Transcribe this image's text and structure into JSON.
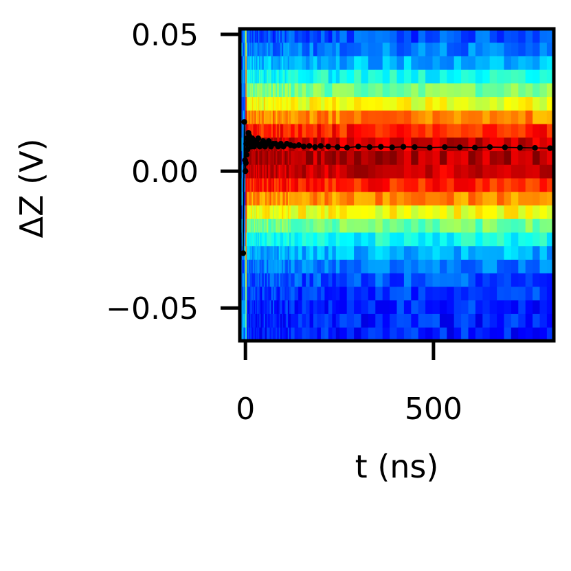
{
  "chart_data": {
    "type": "heatmap",
    "title": "",
    "xlabel": "t (ns)",
    "ylabel": "ΔZ (V)",
    "xlim": [
      -15,
      820
    ],
    "ylim": [
      -0.062,
      0.052
    ],
    "xticks": [
      {
        "value": 0,
        "label": "0"
      },
      {
        "value": 500,
        "label": "500"
      }
    ],
    "yticks": [
      {
        "value": 0.05,
        "label": "0.05"
      },
      {
        "value": 0.0,
        "label": "0.00"
      },
      {
        "value": -0.05,
        "label": "−0.05"
      }
    ],
    "grid": false,
    "legend": "none",
    "colormap": "jet",
    "heatmap_description": "Histogram of ΔZ vs t; high counts near ΔZ ≈ 0.005 V, falling toward blue beyond |ΔZ - 0.005| > 0.03 V",
    "heatmap_center_v": 0.005,
    "heatmap_width_v": 0.019,
    "series": [
      {
        "style": "black markers with thin line",
        "color": "#000000",
        "x": [
          -6,
          -3,
          -1,
          0,
          1,
          2,
          3,
          4,
          6,
          8,
          10,
          12,
          14,
          16,
          18,
          20,
          23,
          26,
          30,
          34,
          38,
          42,
          47,
          52,
          57,
          62,
          68,
          74,
          80,
          87,
          94,
          101,
          110,
          120,
          130,
          142,
          155,
          170,
          185,
          200,
          220,
          245,
          270,
          300,
          330,
          360,
          390,
          420,
          450,
          490,
          530,
          570,
          610,
          650,
          690,
          730,
          770,
          810
        ],
        "y": [
          -0.03,
          0.018,
          0.004,
          0.0,
          0.003,
          0.01,
          0.006,
          0.012,
          0.008,
          0.014,
          0.013,
          0.01,
          0.011,
          0.009,
          0.012,
          0.01,
          0.009,
          0.011,
          0.01,
          0.012,
          0.009,
          0.01,
          0.011,
          0.009,
          0.01,
          0.011,
          0.009,
          0.01,
          0.01,
          0.009,
          0.01,
          0.009,
          0.01,
          0.0095,
          0.0092,
          0.0095,
          0.009,
          0.0092,
          0.0088,
          0.0092,
          0.009,
          0.0088,
          0.0086,
          0.009,
          0.0088,
          0.0089,
          0.0087,
          0.0089,
          0.0088,
          0.0086,
          0.0088,
          0.0087,
          0.0086,
          0.0088,
          0.0087,
          0.0086,
          0.0085,
          0.0084
        ]
      }
    ]
  }
}
